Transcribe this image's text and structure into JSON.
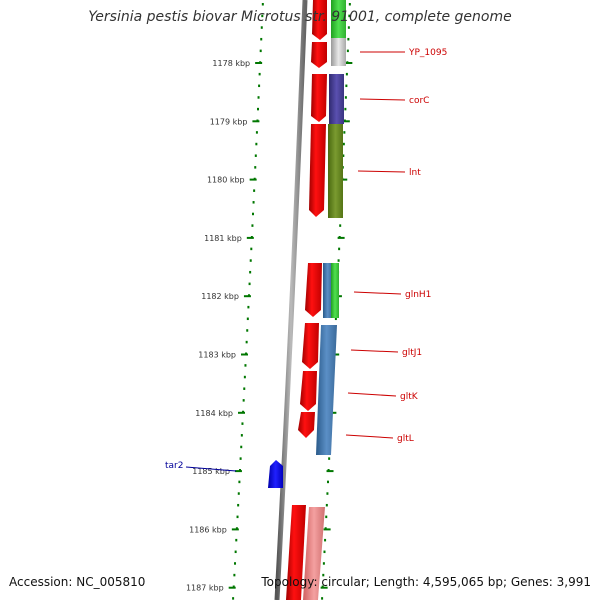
{
  "title": "Yersinia pestis biovar Microtus str. 91001, complete genome",
  "footer": {
    "accession": "Accession: NC_005810",
    "topology": "Topology: circular; Length: 4,595,065 bp; Genes: 3,991"
  },
  "ticks": [
    {
      "label": "1178 kbp"
    },
    {
      "label": "1179 kbp"
    },
    {
      "label": "1180 kbp"
    },
    {
      "label": "1181 kbp"
    },
    {
      "label": "1182 kbp"
    },
    {
      "label": "1183 kbp"
    },
    {
      "label": "1184 kbp"
    },
    {
      "label": "1185 kbp"
    },
    {
      "label": "1186 kbp"
    },
    {
      "label": "1187 kbp"
    }
  ],
  "gene_labels": [
    {
      "name": "YP_1095"
    },
    {
      "name": "corC"
    },
    {
      "name": "lnt"
    },
    {
      "name": "glnH1"
    },
    {
      "name": "gltJ1"
    },
    {
      "name": "gltK"
    },
    {
      "name": "gltL"
    },
    {
      "name": "tar2"
    }
  ],
  "colors": {
    "gene_red": "#ee0000",
    "backbone": "#888888",
    "tick_green": "#007700",
    "label_red": "#cc0000",
    "label_blue": "#000099",
    "rna_blue": "#0000ee"
  }
}
